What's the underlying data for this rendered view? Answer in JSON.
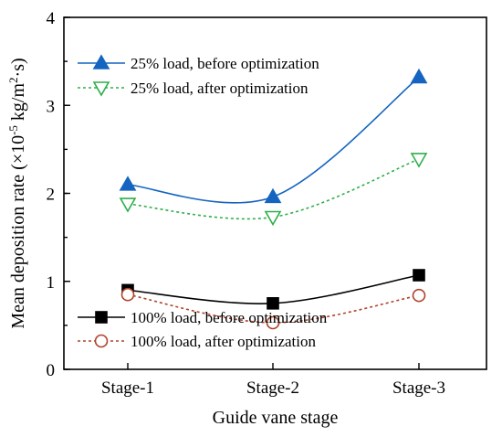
{
  "chart_data": {
    "type": "line",
    "categories": [
      "Stage-1",
      "Stage-2",
      "Stage-3"
    ],
    "xlabel": "Guide vane stage",
    "ylabel_prefix": "Mean deposition rate (×10",
    "ylabel_exp1": "-5",
    "ylabel_mid": " kg/m",
    "ylabel_exp2": "2",
    "ylabel_suffix": "·s)",
    "ylim": [
      0,
      4
    ],
    "yticks": [
      "0",
      "1",
      "2",
      "3",
      "4"
    ],
    "grid": false,
    "series": [
      {
        "name": "25% load, before optimization",
        "values": [
          2.1,
          1.96,
          3.32
        ],
        "color": "#1565C0",
        "dash": "solid",
        "marker": "triangle-up",
        "filled": true
      },
      {
        "name": "25% load, after optimization",
        "values": [
          1.88,
          1.73,
          2.39
        ],
        "color": "#2EAF4A",
        "dash": "dotted",
        "marker": "triangle-down",
        "filled": false
      },
      {
        "name": "100% load, before optimization",
        "values": [
          0.9,
          0.75,
          1.07
        ],
        "color": "#000000",
        "dash": "solid",
        "marker": "square",
        "filled": true
      },
      {
        "name": "100% load, after optimization",
        "values": [
          0.85,
          0.53,
          0.84
        ],
        "color": "#B0422A",
        "dash": "dotted",
        "marker": "circle",
        "filled": false
      }
    ],
    "legend": [
      {
        "placement": "top-left",
        "series": [
          0,
          1
        ]
      },
      {
        "placement": "bottom-left",
        "series": [
          2,
          3
        ]
      }
    ]
  }
}
